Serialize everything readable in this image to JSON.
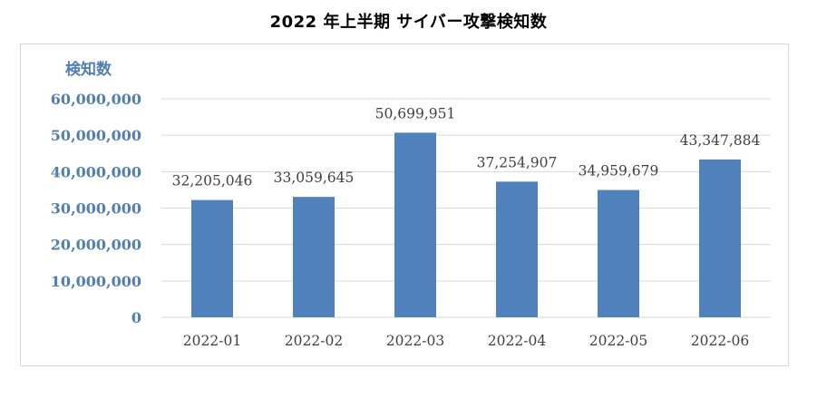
{
  "chart_data": {
    "type": "bar",
    "title": "2022 年上半期 サイバー攻撃検知数",
    "xlabel": "",
    "ylabel": "検知数",
    "categories": [
      "2022-01",
      "2022-02",
      "2022-03",
      "2022-04",
      "2022-05",
      "2022-06"
    ],
    "values": [
      32205046,
      33059645,
      50699951,
      37254907,
      34959679,
      43347884
    ],
    "data_labels": [
      "32,205,046",
      "33,059,645",
      "50,699,951",
      "37,254,907",
      "34,959,679",
      "43,347,884"
    ],
    "yticks": [
      0,
      10000000,
      20000000,
      30000000,
      40000000,
      50000000,
      60000000
    ],
    "ytick_labels": [
      "0",
      "10,000,000",
      "20,000,000",
      "30,000,000",
      "40,000,000",
      "50,000,000",
      "60,000,000"
    ],
    "ylim": [
      0,
      60000000
    ],
    "grid": true,
    "legend": "none",
    "colors": {
      "bar": "#4f81bd",
      "axis_text": "#4f7fb5",
      "grid": "#d9d9d9",
      "label_text": "#404040"
    }
  }
}
